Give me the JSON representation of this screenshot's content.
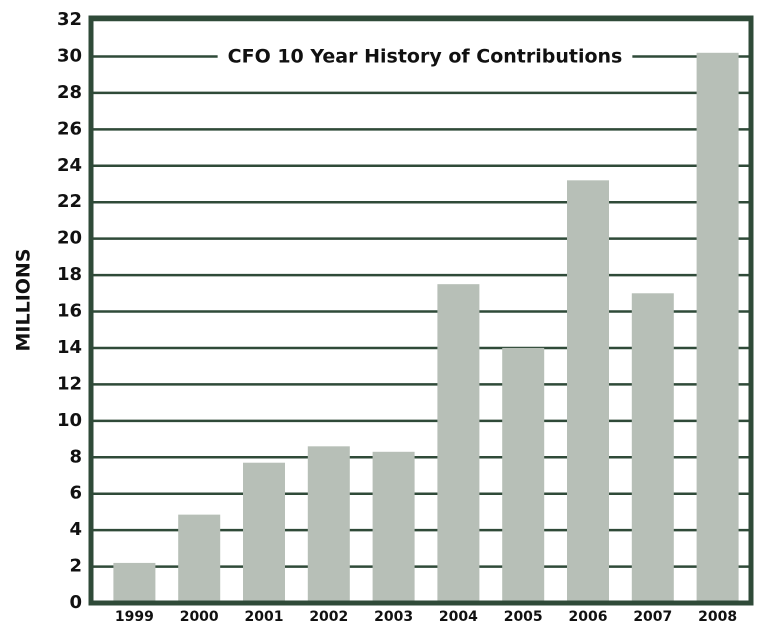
{
  "chart_data": {
    "type": "bar",
    "title": "CFO 10 Year History of Contributions",
    "y_label": "MILLIONS",
    "categories": [
      "1999",
      "2000",
      "2001",
      "2002",
      "2003",
      "2004",
      "2005",
      "2006",
      "2007",
      "2008"
    ],
    "values": [
      2.2,
      4.85,
      7.7,
      8.6,
      8.3,
      17.5,
      14.0,
      23.2,
      17.0,
      30.2
    ],
    "color": "#b7bfb7",
    "grid_color": "#2f4a38",
    "ylim": [
      0,
      32
    ],
    "yticks": [
      0,
      2,
      4,
      6,
      8,
      10,
      12,
      14,
      16,
      18,
      20,
      22,
      24,
      26,
      28,
      30,
      32
    ],
    "grid": true
  }
}
